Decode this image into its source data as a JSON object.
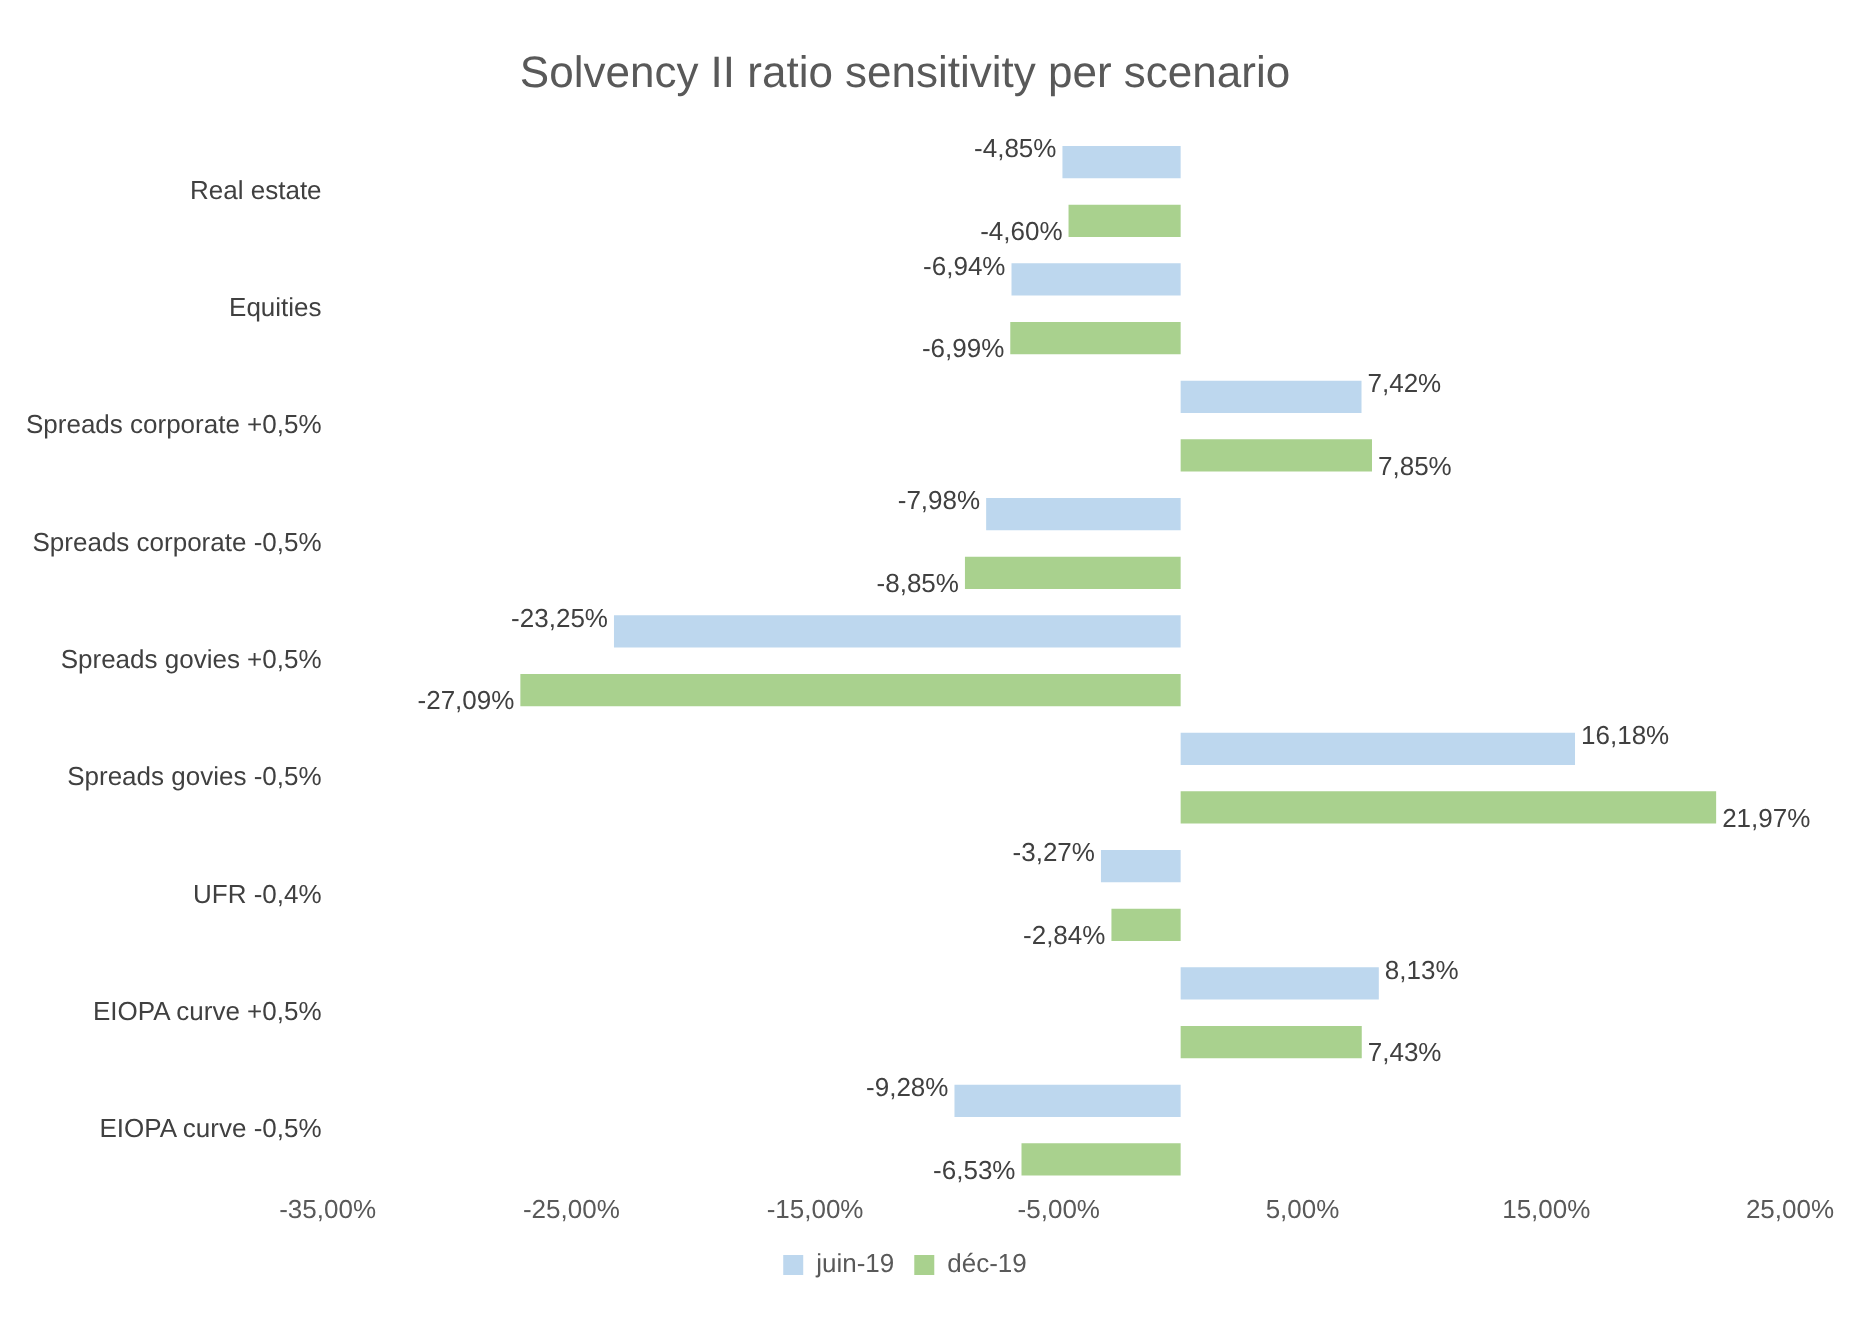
{
  "chart_data": {
    "type": "bar",
    "orientation": "horizontal",
    "title": "Solvency II ratio sensitivity per scenario",
    "categories": [
      "Real estate",
      "Equities",
      "Spreads corporate +0,5%",
      "Spreads corporate -0,5%",
      "Spreads govies +0,5%",
      "Spreads govies -0,5%",
      "UFR -0,4%",
      "EIOPA curve +0,5%",
      "EIOPA curve -0,5%"
    ],
    "series": [
      {
        "name": "juin-19",
        "color": "#bdd7ee",
        "values": [
          -4.85,
          -6.94,
          7.42,
          -7.98,
          -23.25,
          16.18,
          -3.27,
          8.13,
          -9.28
        ],
        "value_labels": [
          "-4,85%",
          "-6,94%",
          "7,42%",
          "-7,98%",
          "-23,25%",
          "16,18%",
          "-3,27%",
          "8,13%",
          "-9,28%"
        ]
      },
      {
        "name": "déc-19",
        "color": "#a9d18e",
        "values": [
          -4.6,
          -6.99,
          7.85,
          -8.85,
          -27.09,
          21.97,
          -2.84,
          7.43,
          -6.53
        ],
        "value_labels": [
          "-4,60%",
          "-6,99%",
          "7,85%",
          "-8,85%",
          "-27,09%",
          "21,97%",
          "-2,84%",
          "7,43%",
          "-6,53%"
        ]
      }
    ],
    "xlim": [
      -35,
      25
    ],
    "xticks": [
      {
        "value": -35,
        "label": "-35,00%"
      },
      {
        "value": -25,
        "label": "-25,00%"
      },
      {
        "value": -15,
        "label": "-15,00%"
      },
      {
        "value": -5,
        "label": "-5,00%"
      },
      {
        "value": 5,
        "label": "5,00%"
      },
      {
        "value": 15,
        "label": "15,00%"
      },
      {
        "value": 25,
        "label": "25,00%"
      }
    ],
    "grid": false,
    "legend": "bottom"
  }
}
